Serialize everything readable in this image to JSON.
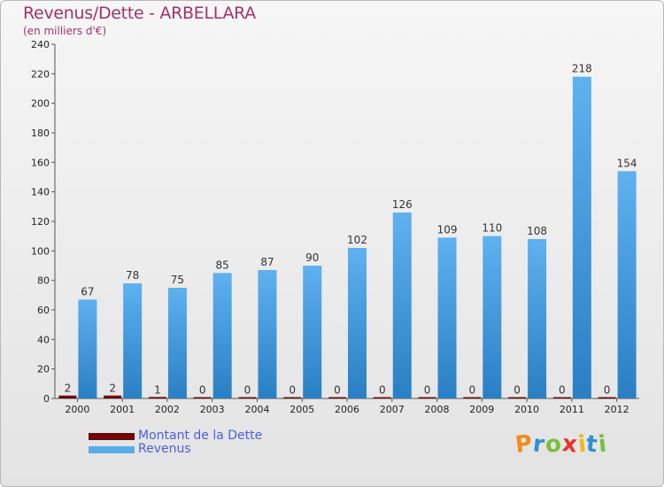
{
  "chart_data": {
    "type": "bar",
    "title": "Revenus/Dette - ARBELLARA",
    "subtitle": "(en milliers d'€)",
    "categories": [
      "2000",
      "2001",
      "2002",
      "2003",
      "2004",
      "2005",
      "2006",
      "2007",
      "2008",
      "2009",
      "2010",
      "2011",
      "2012"
    ],
    "series": [
      {
        "name": "Montant de la Dette",
        "color": "#6b0a0a",
        "values": [
          2,
          2,
          1,
          0,
          0,
          0,
          0,
          0,
          0,
          0,
          0,
          0,
          0
        ]
      },
      {
        "name": "Revenus",
        "color": "#5aabea",
        "values": [
          67,
          78,
          75,
          85,
          87,
          90,
          102,
          126,
          109,
          110,
          108,
          218,
          154
        ]
      }
    ],
    "ylim": [
      0,
      240
    ],
    "yticks": [
      0,
      20,
      40,
      60,
      80,
      100,
      120,
      140,
      160,
      180,
      200,
      220,
      240
    ],
    "grid": false,
    "legend_position": "bottom-left"
  },
  "legend": {
    "debt_label": "Montant de la Dette",
    "revenue_label": "Revenus",
    "debt_color": "#6b0a0a",
    "revenue_color": "#5aabea"
  },
  "logo": {
    "text": "Proxiti",
    "letters": [
      "P",
      "r",
      "o",
      "x",
      "i",
      "t",
      "i"
    ],
    "colors": [
      "#f28c1e",
      "#2f8fd6",
      "#7cbf3a",
      "#e8342c",
      "#f2b71e",
      "#2f8fd6",
      "#7cbf3a"
    ]
  }
}
